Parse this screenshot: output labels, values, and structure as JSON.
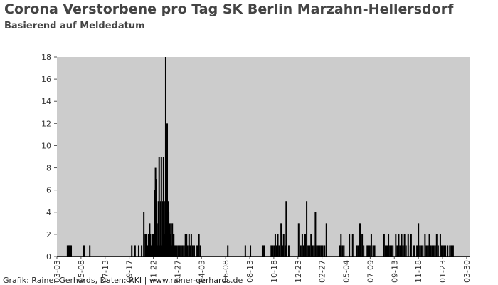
{
  "chart_data": {
    "type": "bar",
    "title": "Corona Verstorbene pro Tag SK Berlin Marzahn-Hellersdorf",
    "subtitle": "Basierend auf Meldedatum",
    "footer": "Grafik: Rainer Gerhards, Daten: RKI | www.rainer-gerhards.de",
    "color": "#000000",
    "background": "#cccccc",
    "x": [
      29,
      31,
      33,
      35,
      37,
      39,
      74,
      90,
      205,
      214,
      224,
      232,
      238,
      242,
      245,
      248,
      251,
      254,
      256,
      259,
      262,
      265,
      268,
      270,
      272,
      274,
      276,
      278,
      280,
      282,
      284,
      286,
      288,
      290,
      292,
      294,
      296,
      298,
      300,
      302,
      304,
      306,
      308,
      310,
      312,
      314,
      316,
      318,
      320,
      322,
      325,
      328,
      332,
      336,
      340,
      344,
      348,
      352,
      355,
      358,
      362,
      365,
      368,
      372,
      376,
      384,
      389,
      393,
      468,
      516,
      530,
      563,
      567,
      587,
      591,
      595,
      598,
      602,
      605,
      609,
      614,
      618,
      621,
      625,
      628,
      635,
      662,
      668,
      672,
      676,
      680,
      684,
      688,
      692,
      696,
      700,
      704,
      708,
      712,
      716,
      720,
      724,
      728,
      733,
      738,
      775,
      778,
      782,
      786,
      801,
      810,
      822,
      826,
      830,
      836,
      840,
      850,
      853,
      857,
      861,
      866,
      870,
      896,
      900,
      904,
      908,
      912,
      916,
      920,
      928,
      932,
      936,
      940,
      944,
      948,
      952,
      956,
      962,
      968,
      970,
      976,
      980,
      986,
      990,
      994,
      998,
      1002,
      1008,
      1012,
      1016,
      1020,
      1024,
      1028,
      1032,
      1036,
      1040,
      1044,
      1050,
      1054,
      1060,
      1064,
      1070,
      1076,
      1080,
      1085
    ],
    "values": [
      1,
      1,
      1,
      1,
      1,
      1,
      1,
      1,
      1,
      1,
      1,
      1,
      4,
      2,
      2,
      1,
      2,
      3,
      2,
      1,
      2,
      2,
      6,
      8,
      7,
      3,
      1,
      5,
      9,
      1,
      5,
      9,
      1,
      5,
      9,
      5,
      2,
      18,
      5,
      12,
      5,
      4,
      3,
      2,
      3,
      1,
      3,
      2,
      2,
      1,
      1,
      1,
      1,
      1,
      1,
      1,
      1,
      2,
      2,
      1,
      2,
      1,
      2,
      1,
      1,
      1,
      2,
      1,
      1,
      1,
      1,
      1,
      1,
      1,
      1,
      1,
      2,
      1,
      2,
      1,
      3,
      1,
      2,
      1,
      5,
      1,
      3,
      1,
      2,
      1,
      2,
      5,
      1,
      1,
      2,
      1,
      1,
      4,
      1,
      1,
      1,
      1,
      1,
      1,
      3,
      1,
      2,
      1,
      1,
      2,
      2,
      1,
      1,
      3,
      2,
      1,
      1,
      1,
      1,
      2,
      1,
      1,
      2,
      1,
      1,
      2,
      1,
      1,
      1,
      2,
      1,
      2,
      1,
      2,
      1,
      2,
      1,
      2,
      1,
      2,
      1,
      1,
      1,
      3,
      1,
      1,
      1,
      2,
      1,
      1,
      2,
      1,
      1,
      1,
      1,
      2,
      1,
      2,
      1,
      1,
      1,
      1,
      1,
      1,
      1
    ],
    "xlim": [
      0,
      1130
    ],
    "xticks": [
      {
        "value": 0,
        "label": "03-03"
      },
      {
        "value": 66,
        "label": "05-08"
      },
      {
        "value": 132,
        "label": "07-13"
      },
      {
        "value": 198,
        "label": "09-17"
      },
      {
        "value": 264,
        "label": "11-22"
      },
      {
        "value": 330,
        "label": "01-27"
      },
      {
        "value": 396,
        "label": "04-03"
      },
      {
        "value": 462,
        "label": "06-08"
      },
      {
        "value": 528,
        "label": "08-13"
      },
      {
        "value": 594,
        "label": "10-18"
      },
      {
        "value": 660,
        "label": "12-23"
      },
      {
        "value": 726,
        "label": "02-27"
      },
      {
        "value": 792,
        "label": "05-04"
      },
      {
        "value": 858,
        "label": "07-09"
      },
      {
        "value": 924,
        "label": "09-13"
      },
      {
        "value": 990,
        "label": "11-18"
      },
      {
        "value": 1056,
        "label": "01-23"
      },
      {
        "value": 1122,
        "label": "03-30"
      }
    ],
    "ylim": [
      0,
      18
    ],
    "yticks": [
      0,
      2,
      4,
      6,
      8,
      10,
      12,
      14,
      16,
      18
    ]
  }
}
